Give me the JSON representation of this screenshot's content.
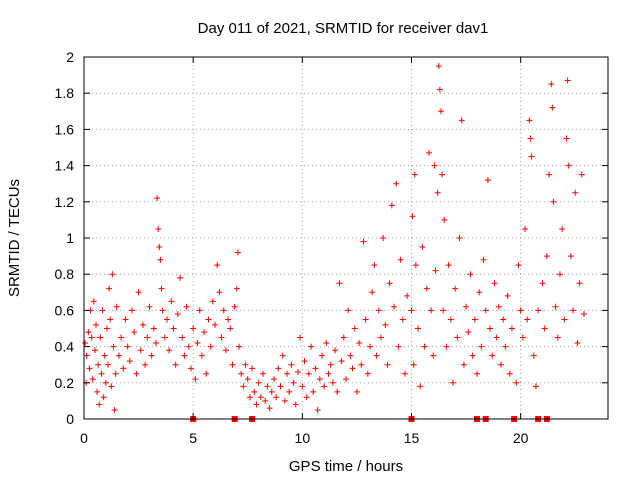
{
  "colors": {
    "series": "#ff0000",
    "grid": "#a0a0a0",
    "axis": "#000000"
  },
  "chart_data": {
    "type": "scatter",
    "title": "Day 011 of 2021, SRMTID for receiver dav1",
    "xlabel": "GPS time / hours",
    "ylabel": "SRMTID / TECUs",
    "xlim": [
      0,
      24
    ],
    "ylim": [
      0,
      2
    ],
    "xticks": [
      0,
      5,
      10,
      15,
      20
    ],
    "xtick_labels": [
      "0",
      "5",
      "10",
      "15",
      "20"
    ],
    "yticks": [
      0,
      0.2,
      0.4,
      0.6,
      0.8,
      1.0,
      1.2,
      1.4,
      1.6,
      1.8,
      2.0
    ],
    "ytick_labels": [
      "0",
      "0.2",
      "0.4",
      "0.6",
      "0.8",
      "1",
      "1.2",
      "1.4",
      "1.6",
      "1.8",
      "2"
    ],
    "grid": true,
    "marker": "plus",
    "series": [
      {
        "name": "SRMTID",
        "points": [
          [
            0.05,
            0.42
          ],
          [
            0.1,
            0.2
          ],
          [
            0.12,
            0.35
          ],
          [
            0.2,
            0.48
          ],
          [
            0.25,
            0.28
          ],
          [
            0.3,
            0.6
          ],
          [
            0.35,
            0.45
          ],
          [
            0.4,
            0.22
          ],
          [
            0.45,
            0.65
          ],
          [
            0.5,
            0.38
          ],
          [
            0.55,
            0.52
          ],
          [
            0.6,
            0.15
          ],
          [
            0.65,
            0.3
          ],
          [
            0.7,
            0.08
          ],
          [
            0.75,
            0.45
          ],
          [
            0.8,
            0.25
          ],
          [
            0.85,
            0.6
          ],
          [
            0.9,
            0.12
          ],
          [
            0.95,
            0.35
          ],
          [
            1.0,
            0.2
          ],
          [
            1.05,
            0.5
          ],
          [
            1.1,
            0.3
          ],
          [
            1.15,
            0.72
          ],
          [
            1.2,
            0.55
          ],
          [
            1.25,
            0.18
          ],
          [
            1.3,
            0.8
          ],
          [
            1.35,
            0.4
          ],
          [
            1.4,
            0.05
          ],
          [
            1.45,
            0.25
          ],
          [
            1.5,
            0.62
          ],
          [
            1.6,
            0.35
          ],
          [
            1.7,
            0.45
          ],
          [
            1.8,
            0.28
          ],
          [
            1.9,
            0.55
          ],
          [
            2.0,
            0.4
          ],
          [
            2.1,
            0.32
          ],
          [
            2.2,
            0.6
          ],
          [
            2.3,
            0.48
          ],
          [
            2.4,
            0.25
          ],
          [
            2.5,
            0.7
          ],
          [
            2.6,
            0.38
          ],
          [
            2.7,
            0.52
          ],
          [
            2.8,
            0.3
          ],
          [
            2.9,
            0.45
          ],
          [
            3.0,
            0.62
          ],
          [
            3.1,
            0.35
          ],
          [
            3.2,
            0.5
          ],
          [
            3.3,
            0.42
          ],
          [
            3.35,
            1.22
          ],
          [
            3.4,
            1.05
          ],
          [
            3.45,
            0.95
          ],
          [
            3.5,
            0.88
          ],
          [
            3.55,
            0.72
          ],
          [
            3.6,
            0.6
          ],
          [
            3.7,
            0.45
          ],
          [
            3.8,
            0.55
          ],
          [
            3.9,
            0.38
          ],
          [
            4.0,
            0.65
          ],
          [
            4.1,
            0.5
          ],
          [
            4.2,
            0.3
          ],
          [
            4.3,
            0.58
          ],
          [
            4.4,
            0.78
          ],
          [
            4.5,
            0.45
          ],
          [
            4.6,
            0.35
          ],
          [
            4.7,
            0.62
          ],
          [
            4.8,
            0.4
          ],
          [
            4.9,
            0.28
          ],
          [
            5.0,
            0.5
          ],
          [
            5.1,
            0.22
          ],
          [
            5.2,
            0.42
          ],
          [
            5.3,
            0.6
          ],
          [
            5.4,
            0.35
          ],
          [
            5.5,
            0.48
          ],
          [
            5.6,
            0.25
          ],
          [
            5.7,
            0.55
          ],
          [
            5.8,
            0.4
          ],
          [
            5.9,
            0.65
          ],
          [
            6.0,
            0.52
          ],
          [
            6.1,
            0.85
          ],
          [
            6.2,
            0.7
          ],
          [
            6.3,
            0.45
          ],
          [
            6.4,
            0.6
          ],
          [
            6.5,
            0.38
          ],
          [
            6.6,
            0.55
          ],
          [
            6.7,
            0.5
          ],
          [
            6.8,
            0.3
          ],
          [
            6.9,
            0.62
          ],
          [
            7.0,
            0.72
          ],
          [
            7.05,
            0.92
          ],
          [
            7.1,
            0.4
          ],
          [
            7.2,
            0.25
          ],
          [
            7.3,
            0.18
          ],
          [
            7.4,
            0.3
          ],
          [
            7.5,
            0.22
          ],
          [
            7.6,
            0.12
          ],
          [
            7.7,
            0.28
          ],
          [
            7.8,
            0.15
          ],
          [
            7.9,
            0.08
          ],
          [
            8.0,
            0.2
          ],
          [
            8.1,
            0.12
          ],
          [
            8.2,
            0.25
          ],
          [
            8.3,
            0.1
          ],
          [
            8.4,
            0.18
          ],
          [
            8.5,
            0.06
          ],
          [
            8.6,
            0.15
          ],
          [
            8.7,
            0.22
          ],
          [
            8.8,
            0.12
          ],
          [
            8.9,
            0.28
          ],
          [
            9.0,
            0.18
          ],
          [
            9.1,
            0.35
          ],
          [
            9.2,
            0.1
          ],
          [
            9.3,
            0.25
          ],
          [
            9.4,
            0.15
          ],
          [
            9.5,
            0.3
          ],
          [
            9.6,
            0.2
          ],
          [
            9.7,
            0.08
          ],
          [
            9.8,
            0.26
          ],
          [
            9.9,
            0.45
          ],
          [
            10.0,
            0.18
          ],
          [
            10.1,
            0.32
          ],
          [
            10.2,
            0.12
          ],
          [
            10.3,
            0.25
          ],
          [
            10.4,
            0.4
          ],
          [
            10.5,
            0.15
          ],
          [
            10.6,
            0.28
          ],
          [
            10.7,
            0.05
          ],
          [
            10.8,
            0.22
          ],
          [
            10.9,
            0.35
          ],
          [
            11.0,
            0.18
          ],
          [
            11.1,
            0.42
          ],
          [
            11.2,
            0.25
          ],
          [
            11.3,
            0.3
          ],
          [
            11.4,
            0.2
          ],
          [
            11.5,
            0.38
          ],
          [
            11.6,
            0.15
          ],
          [
            11.7,
            0.75
          ],
          [
            11.8,
            0.32
          ],
          [
            11.9,
            0.45
          ],
          [
            12.0,
            0.22
          ],
          [
            12.1,
            0.6
          ],
          [
            12.2,
            0.35
          ],
          [
            12.3,
            0.28
          ],
          [
            12.4,
            0.5
          ],
          [
            12.5,
            0.15
          ],
          [
            12.6,
            0.42
          ],
          [
            12.7,
            0.3
          ],
          [
            12.8,
            0.98
          ],
          [
            12.9,
            0.55
          ],
          [
            13.0,
            0.25
          ],
          [
            13.1,
            0.4
          ],
          [
            13.2,
            0.7
          ],
          [
            13.3,
            0.85
          ],
          [
            13.4,
            0.35
          ],
          [
            13.5,
            0.6
          ],
          [
            13.6,
            0.45
          ],
          [
            13.7,
            1.0
          ],
          [
            13.8,
            0.52
          ],
          [
            13.9,
            0.3
          ],
          [
            14.0,
            0.75
          ],
          [
            14.1,
            1.18
          ],
          [
            14.2,
            0.62
          ],
          [
            14.3,
            1.3
          ],
          [
            14.4,
            0.4
          ],
          [
            14.5,
            0.88
          ],
          [
            14.6,
            0.55
          ],
          [
            14.7,
            0.25
          ],
          [
            14.8,
            0.68
          ],
          [
            15.0,
            0.6
          ],
          [
            15.05,
            1.12
          ],
          [
            15.1,
            0.3
          ],
          [
            15.15,
            1.35
          ],
          [
            15.2,
            0.85
          ],
          [
            15.3,
            0.5
          ],
          [
            15.4,
            0.18
          ],
          [
            15.5,
            0.95
          ],
          [
            15.6,
            0.4
          ],
          [
            15.7,
            0.72
          ],
          [
            15.8,
            1.47
          ],
          [
            15.9,
            0.6
          ],
          [
            16.0,
            0.35
          ],
          [
            16.05,
            1.4
          ],
          [
            16.1,
            0.82
          ],
          [
            16.2,
            1.25
          ],
          [
            16.25,
            1.95
          ],
          [
            16.3,
            1.82
          ],
          [
            16.35,
            1.7
          ],
          [
            16.4,
            1.35
          ],
          [
            16.45,
            0.6
          ],
          [
            16.5,
            1.1
          ],
          [
            16.6,
            0.4
          ],
          [
            16.7,
            0.85
          ],
          [
            16.8,
            0.55
          ],
          [
            16.9,
            0.2
          ],
          [
            17.0,
            0.72
          ],
          [
            17.1,
            0.45
          ],
          [
            17.2,
            1.0
          ],
          [
            17.3,
            1.65
          ],
          [
            17.4,
            0.3
          ],
          [
            17.5,
            0.62
          ],
          [
            17.6,
            0.48
          ],
          [
            17.7,
            0.8
          ],
          [
            17.8,
            0.35
          ],
          [
            17.9,
            0.55
          ],
          [
            18.0,
            0.25
          ],
          [
            18.1,
            0.7
          ],
          [
            18.2,
            0.4
          ],
          [
            18.3,
            0.88
          ],
          [
            18.4,
            0.6
          ],
          [
            18.5,
            1.32
          ],
          [
            18.6,
            0.5
          ],
          [
            18.7,
            0.35
          ],
          [
            18.8,
            0.75
          ],
          [
            18.9,
            0.45
          ],
          [
            19.0,
            0.62
          ],
          [
            19.1,
            0.3
          ],
          [
            19.2,
            0.55
          ],
          [
            19.3,
            0.4
          ],
          [
            19.4,
            0.68
          ],
          [
            19.5,
            0.25
          ],
          [
            19.6,
            0.5
          ],
          [
            19.8,
            0.2
          ],
          [
            19.9,
            0.85
          ],
          [
            20.0,
            0.6
          ],
          [
            20.1,
            0.45
          ],
          [
            20.2,
            1.05
          ],
          [
            20.3,
            0.55
          ],
          [
            20.4,
            1.65
          ],
          [
            20.45,
            1.55
          ],
          [
            20.5,
            1.45
          ],
          [
            20.6,
            0.35
          ],
          [
            20.7,
            0.18
          ],
          [
            20.8,
            0.6
          ],
          [
            21.0,
            0.75
          ],
          [
            21.1,
            0.5
          ],
          [
            21.2,
            0.9
          ],
          [
            21.3,
            1.35
          ],
          [
            21.4,
            1.85
          ],
          [
            21.45,
            1.72
          ],
          [
            21.5,
            1.2
          ],
          [
            21.6,
            0.62
          ],
          [
            21.7,
            0.45
          ],
          [
            21.8,
            0.8
          ],
          [
            21.9,
            1.05
          ],
          [
            22.0,
            0.55
          ],
          [
            22.1,
            1.55
          ],
          [
            22.15,
            1.87
          ],
          [
            22.2,
            1.4
          ],
          [
            22.3,
            0.9
          ],
          [
            22.4,
            0.6
          ],
          [
            22.5,
            1.25
          ],
          [
            22.6,
            0.42
          ],
          [
            22.7,
            0.75
          ],
          [
            22.8,
            1.35
          ],
          [
            22.9,
            0.58
          ]
        ],
        "zero_points": [
          5.0,
          6.9,
          7.7,
          15.0,
          18.0,
          18.4,
          19.7,
          20.8,
          21.2
        ]
      }
    ]
  }
}
